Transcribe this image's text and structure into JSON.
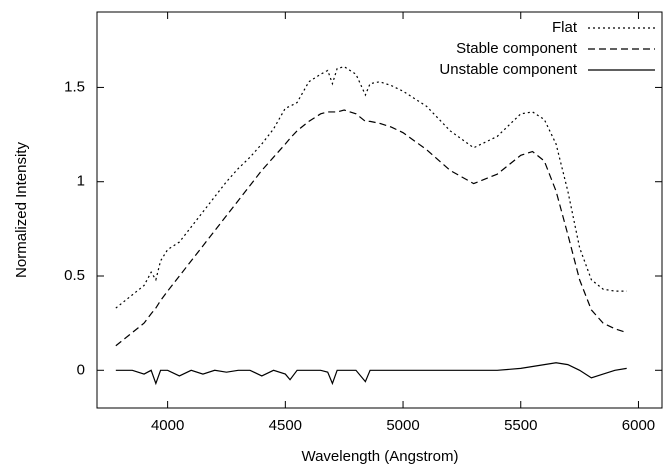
{
  "chart_data": {
    "type": "line",
    "xlabel": "Wavelength (Angstrom)",
    "ylabel": "Normalized Intensity",
    "x": [
      3780,
      3850,
      3900,
      3930,
      3950,
      3970,
      4000,
      4050,
      4100,
      4150,
      4200,
      4250,
      4300,
      4350,
      4400,
      4450,
      4500,
      4520,
      4550,
      4600,
      4650,
      4680,
      4700,
      4720,
      4750,
      4800,
      4840,
      4860,
      4900,
      4950,
      5000,
      5100,
      5200,
      5300,
      5400,
      5500,
      5550,
      5600,
      5650,
      5700,
      5750,
      5800,
      5850,
      5900,
      5950
    ],
    "series": [
      {
        "name": "Flat",
        "color": "#000000",
        "dash": "2,3",
        "values": [
          0.33,
          0.4,
          0.45,
          0.52,
          0.48,
          0.58,
          0.64,
          0.68,
          0.76,
          0.84,
          0.92,
          1.0,
          1.07,
          1.13,
          1.2,
          1.28,
          1.39,
          1.4,
          1.42,
          1.53,
          1.57,
          1.59,
          1.52,
          1.6,
          1.61,
          1.57,
          1.46,
          1.52,
          1.53,
          1.51,
          1.48,
          1.4,
          1.27,
          1.18,
          1.24,
          1.36,
          1.37,
          1.33,
          1.2,
          0.95,
          0.65,
          0.48,
          0.43,
          0.42,
          0.42
        ]
      },
      {
        "name": "Stable component",
        "color": "#000000",
        "dash": "7,4",
        "values": [
          0.13,
          0.2,
          0.25,
          0.3,
          0.33,
          0.37,
          0.42,
          0.5,
          0.58,
          0.66,
          0.74,
          0.82,
          0.9,
          0.98,
          1.06,
          1.13,
          1.2,
          1.23,
          1.27,
          1.32,
          1.36,
          1.37,
          1.37,
          1.37,
          1.38,
          1.36,
          1.32,
          1.32,
          1.31,
          1.29,
          1.26,
          1.17,
          1.06,
          0.99,
          1.04,
          1.14,
          1.16,
          1.11,
          0.95,
          0.72,
          0.48,
          0.32,
          0.25,
          0.22,
          0.2
        ]
      },
      {
        "name": "Unstable component",
        "color": "#000000",
        "dash": "none",
        "values": [
          0,
          0,
          -0.02,
          0,
          -0.07,
          0,
          0,
          -0.03,
          0,
          -0.02,
          0,
          -0.01,
          0,
          0,
          -0.03,
          0,
          -0.02,
          -0.05,
          0,
          0,
          0,
          -0.01,
          -0.07,
          0,
          0,
          0,
          -0.06,
          0,
          0,
          0,
          0,
          0,
          0,
          0,
          0,
          0.01,
          0.02,
          0.03,
          0.04,
          0.03,
          0,
          -0.04,
          -0.02,
          0,
          0.01
        ]
      }
    ],
    "xlim": [
      3700,
      6100
    ],
    "xticks": [
      4000,
      4500,
      5000,
      5500,
      6000
    ],
    "ylim": [
      -0.2,
      1.9
    ],
    "yticks": [
      0,
      0.5,
      1,
      1.5
    ],
    "grid": false,
    "legend": "top-right"
  }
}
